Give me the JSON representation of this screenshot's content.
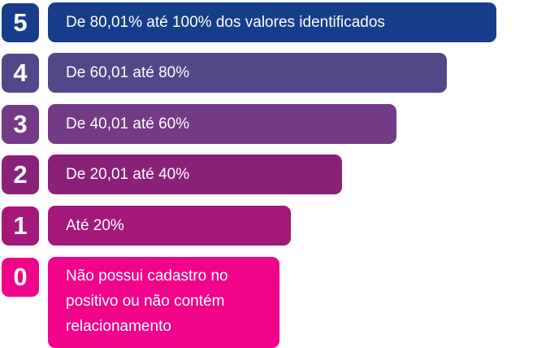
{
  "levels": [
    {
      "score": "5",
      "label": "De 80,01% até 100% dos valores identificados",
      "color": "#173d8a"
    },
    {
      "score": "4",
      "label": "De 60,01 até 80%",
      "color": "#534689"
    },
    {
      "score": "3",
      "label": "De 40,01 até 60%",
      "color": "#733a85"
    },
    {
      "score": "2",
      "label": "De 20,01 até 40%",
      "color": "#8a2179"
    },
    {
      "score": "1",
      "label": "Até 20%",
      "color": "#a3187a"
    },
    {
      "score": "0",
      "label": "Não possui cadastro no positivo ou não contém relacionamento",
      "color": "#f1038a"
    }
  ]
}
